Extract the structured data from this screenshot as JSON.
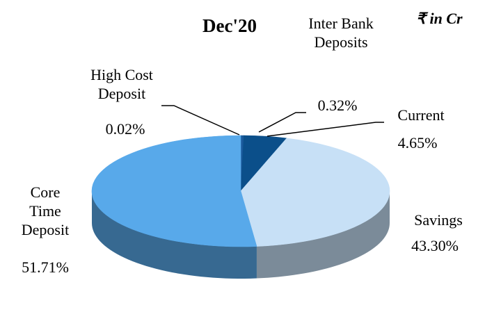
{
  "chart_data": {
    "type": "pie3d",
    "title": "Dec'20",
    "annotation": "₹ in Cr",
    "categories": [
      "High Cost Deposit",
      "Inter Bank Deposits",
      "Current",
      "Savings",
      "Core Time Deposit"
    ],
    "values": [
      0.02,
      0.32,
      4.65,
      43.3,
      51.71
    ],
    "value_labels": [
      "0.02%",
      "0.32%",
      "4.65%",
      "43.30%",
      "51.71%"
    ],
    "colors": [
      "#e6c01c",
      "#1a5a9c",
      "#0b4f8a",
      "#c7e0f6",
      "#58a9ea"
    ]
  }
}
